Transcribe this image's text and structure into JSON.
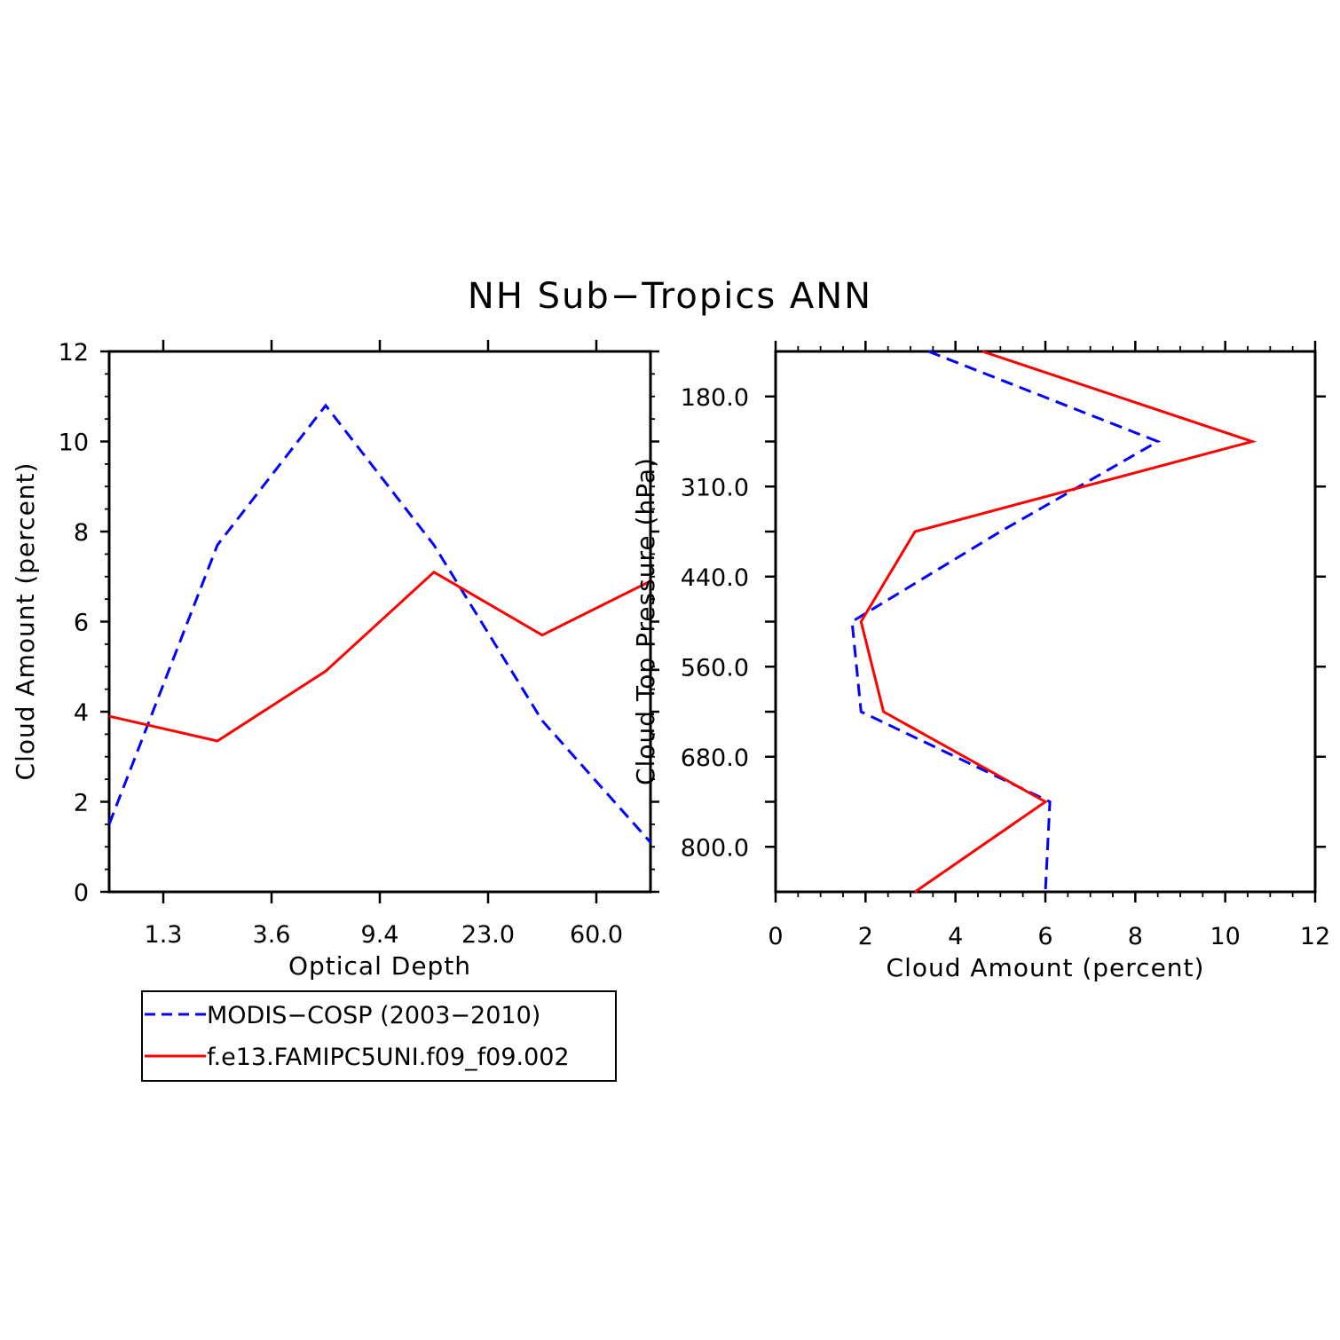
{
  "title": "NH Sub−Tropics ANN",
  "colors": {
    "model": "#ff0000",
    "obs": "#0000ff",
    "axes": "#000000"
  },
  "legend": [
    {
      "label": "MODIS−COSP (2003−2010)",
      "color": "#0000ff",
      "dash": "dashed"
    },
    {
      "label": "f.e13.FAMIPC5UNI.f09_f09.002",
      "color": "#ff0000",
      "dash": "solid"
    }
  ],
  "chart_data": [
    {
      "type": "line",
      "xlabel": "Optical Depth",
      "ylabel": "Cloud Amount (percent)",
      "x_bins": [
        1,
        2,
        3,
        4,
        5,
        6
      ],
      "xlim": [
        0.5,
        5.5
      ],
      "xtick_positions": [
        1,
        2,
        3,
        4,
        5
      ],
      "xtick_labels": [
        "1.3",
        "3.6",
        "9.4",
        "23.0",
        "60.0"
      ],
      "ylim": [
        0,
        12
      ],
      "yticks": [
        0,
        2,
        4,
        6,
        8,
        10,
        12
      ],
      "series": [
        {
          "name": "MODIS−COSP (2003−2010)",
          "style": "dashed",
          "x": [
            0.5,
            1.5,
            2.5,
            3.5,
            4.5,
            5.5
          ],
          "values": [
            1.5,
            7.7,
            10.8,
            7.7,
            3.8,
            1.1
          ]
        },
        {
          "name": "f.e13.FAMIPC5UNI.f09_f09.002",
          "style": "solid",
          "x": [
            0.5,
            1.5,
            2.5,
            3.5,
            4.5,
            5.5
          ],
          "values": [
            3.9,
            3.35,
            4.9,
            7.1,
            5.7,
            6.9
          ]
        }
      ]
    },
    {
      "type": "line",
      "orientation": "horizontal",
      "xlabel": "Cloud Amount (percent)",
      "ylabel": "Cloud Top Pressure (hPa)",
      "xlim": [
        0,
        12
      ],
      "xticks": [
        0,
        2,
        4,
        6,
        8,
        10,
        12
      ],
      "ylim_levels": [
        0,
        6
      ],
      "ytick_positions": [
        0.5,
        1.5,
        2.5,
        3.5,
        4.5,
        5.5
      ],
      "ytick_labels": [
        "180.0",
        "310.0",
        "440.0",
        "560.0",
        "680.0",
        "800.0"
      ],
      "series": [
        {
          "name": "MODIS−COSP (2003−2010)",
          "style": "dashed",
          "level": [
            0,
            1,
            2,
            3,
            4,
            5,
            6
          ],
          "values": [
            3.4,
            8.5,
            5.0,
            1.7,
            1.9,
            6.1,
            6.0
          ]
        },
        {
          "name": "f.e13.FAMIPC5UNI.f09_f09.002",
          "style": "solid",
          "level": [
            0,
            1,
            2,
            3,
            4,
            5,
            6
          ],
          "values": [
            4.6,
            10.6,
            3.1,
            1.9,
            2.4,
            6.0,
            3.1
          ]
        }
      ]
    }
  ]
}
